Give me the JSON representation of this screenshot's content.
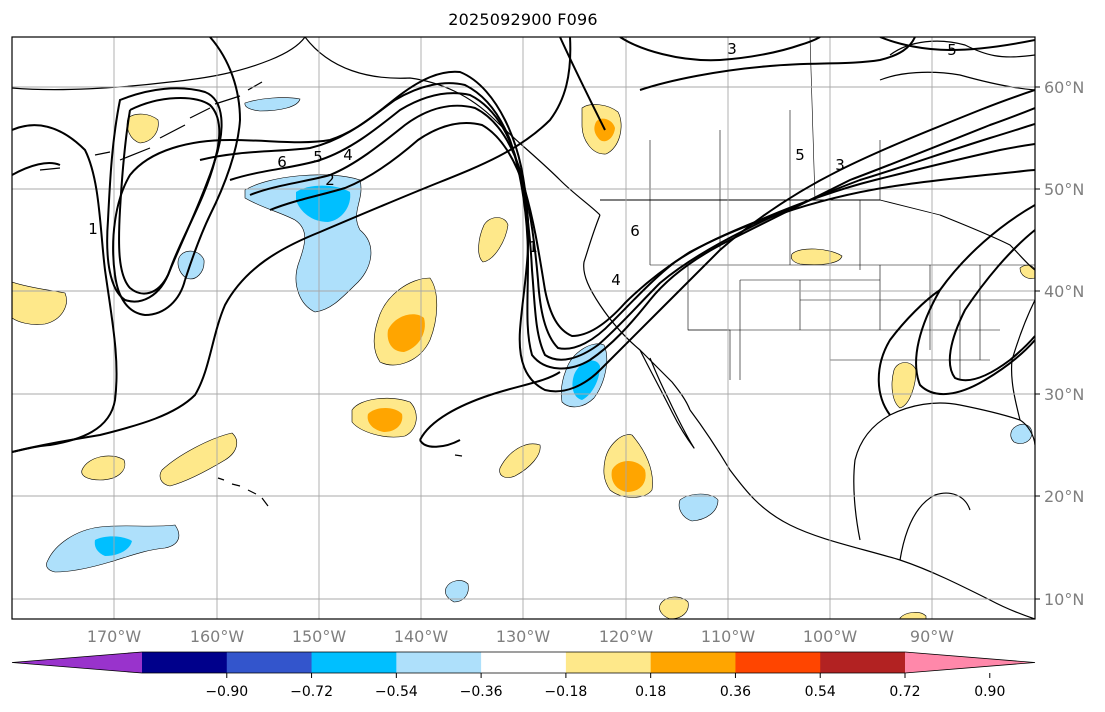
{
  "title": "2025092900 F096",
  "map": {
    "lat_labels": [
      "60°N",
      "50°N",
      "40°N",
      "30°N",
      "20°N",
      "10°N"
    ],
    "lon_labels": [
      "170°W",
      "160°W",
      "150°W",
      "140°W",
      "130°W",
      "120°W",
      "110°W",
      "100°W",
      "90°W"
    ],
    "contour_labels": [
      "6",
      "5",
      "4",
      "2",
      "1",
      "1",
      "6",
      "4",
      "5",
      "3",
      "5",
      "3"
    ],
    "gridline_color": "#a8a8a8",
    "coast_color": "#000000"
  },
  "colorbar": {
    "colors": [
      "#9933cc",
      "#00008b",
      "#3355cc",
      "#00bfff",
      "#aee0fb",
      "#ffffff",
      "#fee88a",
      "#ffa500",
      "#ff4500",
      "#b22222",
      "#ff88aa"
    ],
    "tick_labels": [
      "−0.90",
      "−0.72",
      "−0.54",
      "−0.36",
      "−0.18",
      "0.18",
      "0.36",
      "0.54",
      "0.72",
      "0.90"
    ]
  }
}
